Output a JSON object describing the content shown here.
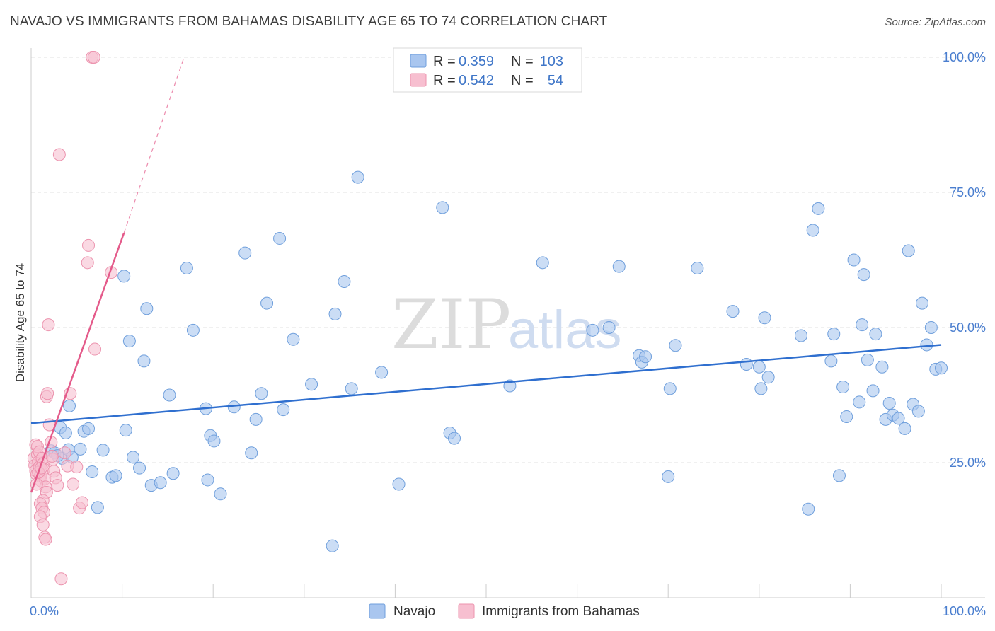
{
  "header": {
    "title": "NAVAJO VS IMMIGRANTS FROM BAHAMAS DISABILITY AGE 65 TO 74 CORRELATION CHART",
    "source": "Source: ZipAtlas.com"
  },
  "watermark": {
    "zip": "ZIP",
    "atlas": "atlas"
  },
  "chart_data": {
    "type": "scatter",
    "title": "NAVAJO VS IMMIGRANTS FROM BAHAMAS DISABILITY AGE 65 TO 74 CORRELATION CHART",
    "xlabel": "",
    "ylabel": "Disability Age 65 to 74",
    "xlim": [
      0,
      100
    ],
    "ylim": [
      0,
      102
    ],
    "x_tick_labels": [
      {
        "value": 0,
        "label": "0.0%"
      },
      {
        "value": 100,
        "label": "100.0%"
      }
    ],
    "y_tick_labels": [
      {
        "value": 25,
        "label": "25.0%"
      },
      {
        "value": 50,
        "label": "50.0%"
      },
      {
        "value": 75,
        "label": "75.0%"
      },
      {
        "value": 100,
        "label": "100.0%"
      }
    ],
    "grid": true,
    "legend_position": "top-center",
    "stats": [
      {
        "r_label": "R =",
        "r": "0.359",
        "n_label": "N =",
        "n": "103"
      },
      {
        "r_label": "R =",
        "r": "0.542",
        "n_label": "N =",
        "n": "54"
      }
    ],
    "series": [
      {
        "name": "Navajo",
        "color": "#a9c6ef",
        "stroke": "#6f9fdc",
        "trend_color": "#2f6fcf",
        "trend": {
          "x1": 0,
          "y1": 32.3,
          "x2": 100,
          "y2": 46.8
        },
        "points": [
          [
            2.2,
            27.2
          ],
          [
            2.6,
            26.8
          ],
          [
            3.4,
            25.8
          ],
          [
            4.1,
            27.4
          ],
          [
            4.5,
            26.0
          ],
          [
            2.9,
            26.3
          ],
          [
            3.2,
            31.5
          ],
          [
            3.8,
            30.5
          ],
          [
            4.2,
            35.5
          ],
          [
            5.4,
            27.5
          ],
          [
            5.8,
            30.8
          ],
          [
            6.3,
            31.3
          ],
          [
            6.7,
            23.3
          ],
          [
            7.3,
            16.7
          ],
          [
            7.9,
            27.3
          ],
          [
            8.9,
            22.3
          ],
          [
            9.3,
            22.6
          ],
          [
            10.2,
            59.5
          ],
          [
            10.4,
            31.0
          ],
          [
            10.8,
            47.5
          ],
          [
            11.2,
            26.0
          ],
          [
            11.9,
            24.0
          ],
          [
            12.4,
            43.8
          ],
          [
            12.7,
            53.5
          ],
          [
            13.2,
            20.8
          ],
          [
            14.2,
            21.3
          ],
          [
            15.2,
            37.5
          ],
          [
            15.6,
            23.0
          ],
          [
            17.1,
            61.0
          ],
          [
            17.8,
            49.5
          ],
          [
            19.2,
            35.0
          ],
          [
            19.4,
            21.8
          ],
          [
            19.7,
            30.0
          ],
          [
            20.1,
            29.0
          ],
          [
            20.8,
            19.2
          ],
          [
            22.3,
            35.3
          ],
          [
            23.5,
            63.8
          ],
          [
            24.2,
            26.8
          ],
          [
            24.7,
            33.0
          ],
          [
            25.3,
            37.8
          ],
          [
            25.9,
            54.5
          ],
          [
            27.3,
            66.5
          ],
          [
            27.7,
            34.8
          ],
          [
            28.8,
            47.8
          ],
          [
            30.8,
            39.5
          ],
          [
            33.1,
            9.6
          ],
          [
            33.4,
            52.5
          ],
          [
            34.4,
            58.5
          ],
          [
            35.2,
            38.7
          ],
          [
            35.9,
            77.8
          ],
          [
            38.5,
            41.7
          ],
          [
            40.4,
            21.0
          ],
          [
            45.2,
            72.2
          ],
          [
            46.0,
            30.5
          ],
          [
            46.5,
            29.5
          ],
          [
            52.6,
            39.2
          ],
          [
            56.2,
            62.0
          ],
          [
            61.7,
            49.5
          ],
          [
            63.5,
            50.0
          ],
          [
            64.6,
            61.3
          ],
          [
            66.8,
            44.8
          ],
          [
            67.1,
            43.6
          ],
          [
            67.5,
            44.6
          ],
          [
            70.0,
            22.4
          ],
          [
            70.2,
            38.7
          ],
          [
            70.8,
            46.7
          ],
          [
            73.2,
            61.0
          ],
          [
            77.1,
            53.0
          ],
          [
            78.6,
            43.2
          ],
          [
            80.0,
            42.7
          ],
          [
            80.2,
            38.7
          ],
          [
            80.6,
            51.8
          ],
          [
            81.0,
            40.8
          ],
          [
            84.6,
            48.5
          ],
          [
            85.4,
            16.4
          ],
          [
            85.9,
            68.0
          ],
          [
            86.5,
            72.0
          ],
          [
            87.9,
            43.8
          ],
          [
            88.2,
            48.8
          ],
          [
            88.8,
            22.6
          ],
          [
            89.2,
            39.0
          ],
          [
            89.6,
            33.5
          ],
          [
            90.4,
            62.5
          ],
          [
            91.0,
            36.2
          ],
          [
            91.5,
            59.8
          ],
          [
            91.9,
            44.0
          ],
          [
            92.5,
            38.3
          ],
          [
            92.8,
            48.8
          ],
          [
            93.5,
            42.7
          ],
          [
            93.9,
            33.0
          ],
          [
            94.3,
            36.0
          ],
          [
            94.7,
            33.8
          ],
          [
            95.3,
            33.2
          ],
          [
            96.0,
            31.3
          ],
          [
            96.4,
            64.2
          ],
          [
            96.9,
            35.8
          ],
          [
            97.5,
            34.5
          ],
          [
            97.9,
            54.5
          ],
          [
            98.4,
            46.8
          ],
          [
            98.9,
            50.0
          ],
          [
            99.4,
            42.3
          ],
          [
            100.0,
            42.5
          ],
          [
            91.3,
            50.5
          ]
        ]
      },
      {
        "name": "Immigrants from Bahamas",
        "color": "#f7bfd0",
        "stroke": "#ec93ae",
        "trend_color": "#e45a8a",
        "trend": {
          "x1": 0,
          "y1": 19.5,
          "x2": 10.2,
          "y2": 67.5
        },
        "trend_extension": {
          "x1": 10.2,
          "y1": 67.5,
          "x2": 16.8,
          "y2": 100.0
        },
        "points": [
          [
            0.3,
            25.8
          ],
          [
            0.4,
            24.5
          ],
          [
            0.5,
            23.5
          ],
          [
            0.6,
            22.8
          ],
          [
            0.7,
            26.5
          ],
          [
            0.8,
            25.2
          ],
          [
            0.9,
            24.2
          ],
          [
            1.0,
            22.5
          ],
          [
            1.1,
            21.6
          ],
          [
            0.5,
            28.3
          ],
          [
            0.7,
            28.0
          ],
          [
            0.9,
            27.0
          ],
          [
            1.2,
            25.8
          ],
          [
            1.3,
            24.8
          ],
          [
            1.4,
            23.8
          ],
          [
            1.5,
            22.0
          ],
          [
            1.6,
            20.5
          ],
          [
            1.7,
            19.5
          ],
          [
            1.3,
            18.0
          ],
          [
            1.0,
            17.4
          ],
          [
            1.2,
            16.6
          ],
          [
            1.4,
            15.8
          ],
          [
            1.0,
            15.0
          ],
          [
            1.3,
            13.5
          ],
          [
            1.5,
            11.2
          ],
          [
            1.6,
            10.8
          ],
          [
            1.7,
            37.2
          ],
          [
            1.8,
            37.8
          ],
          [
            1.9,
            50.5
          ],
          [
            2.0,
            32.0
          ],
          [
            2.2,
            28.8
          ],
          [
            2.4,
            25.6
          ],
          [
            2.5,
            23.4
          ],
          [
            2.7,
            22.2
          ],
          [
            2.9,
            20.8
          ],
          [
            3.1,
            82.0
          ],
          [
            3.3,
            3.5
          ],
          [
            3.7,
            26.8
          ],
          [
            4.0,
            24.4
          ],
          [
            4.3,
            37.8
          ],
          [
            4.6,
            21.0
          ],
          [
            5.0,
            24.2
          ],
          [
            5.3,
            16.6
          ],
          [
            5.6,
            17.6
          ],
          [
            6.2,
            62.0
          ],
          [
            6.3,
            65.2
          ],
          [
            6.7,
            100.0
          ],
          [
            6.9,
            100.0
          ],
          [
            7.0,
            46.0
          ],
          [
            8.8,
            60.2
          ],
          [
            0.6,
            21.0
          ],
          [
            0.8,
            23.2
          ],
          [
            1.1,
            24.0
          ],
          [
            2.3,
            26.2
          ]
        ]
      }
    ]
  },
  "legend": {
    "items": [
      {
        "label": "Navajo",
        "color": "#a9c6ef"
      },
      {
        "label": "Immigrants from Bahamas",
        "color": "#f7bfd0"
      }
    ]
  }
}
